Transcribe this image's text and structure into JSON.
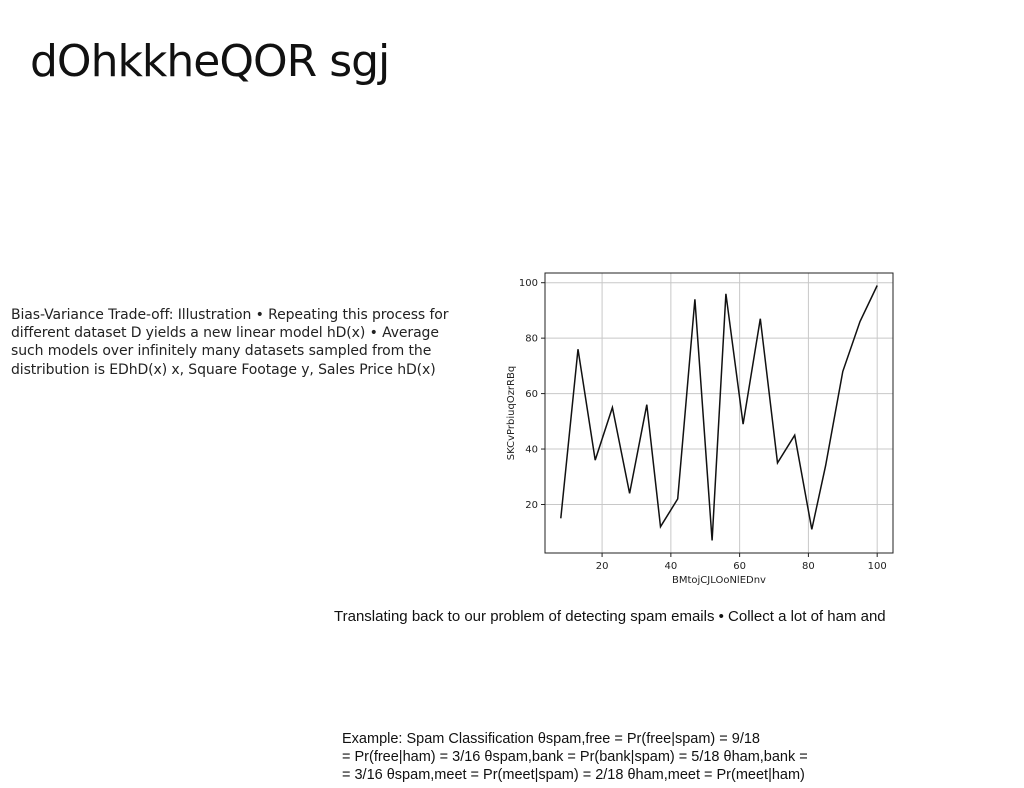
{
  "slide": {
    "title": "dOhkkheQOR sgj",
    "body": "Bias-Variance Trade-off: Illustration • Repeating this process for different dataset D⁲ yields a new linear model hD(x) • Average such models over infinitely many datasets sampled from the distribution is EDhD(x) x, Square Footage y, Sales Price hD(x)",
    "caption": "Translating back to our problem of detecting spam emails • Collect a lot of ham and",
    "example_lines": [
      "Example: Spam Classification θspam,free = Pr(free|spam) = 9/18",
      "= Pr(free|ham) = 3/16 θspam,bank = Pr(bank|spam) = 5/18 θham,bank =",
      "= 3/16 θspam,meet = Pr(meet|spam) = 2/18 θham,meet = Pr(meet|ham)"
    ]
  },
  "chart_data": {
    "type": "line",
    "title": "",
    "xlabel": "BMtojCJLOoNlEDnv",
    "ylabel": "SKCvPrbiuqOzrRBq",
    "x": [
      8,
      13,
      18,
      23,
      28,
      33,
      37,
      42,
      47,
      52,
      56,
      61,
      66,
      71,
      76,
      81,
      85,
      90,
      95,
      100
    ],
    "values": [
      15,
      76,
      36,
      55,
      24,
      56,
      12,
      22,
      94,
      7,
      96,
      49,
      87,
      35,
      45,
      11,
      34,
      68,
      86,
      99
    ],
    "xlim": [
      3.4,
      104.6
    ],
    "ylim": [
      2.5,
      103.5
    ],
    "xticks": [
      20,
      40,
      60,
      80,
      100
    ],
    "yticks": [
      20,
      40,
      60,
      80,
      100
    ],
    "grid": true,
    "line_color": "#111111"
  }
}
